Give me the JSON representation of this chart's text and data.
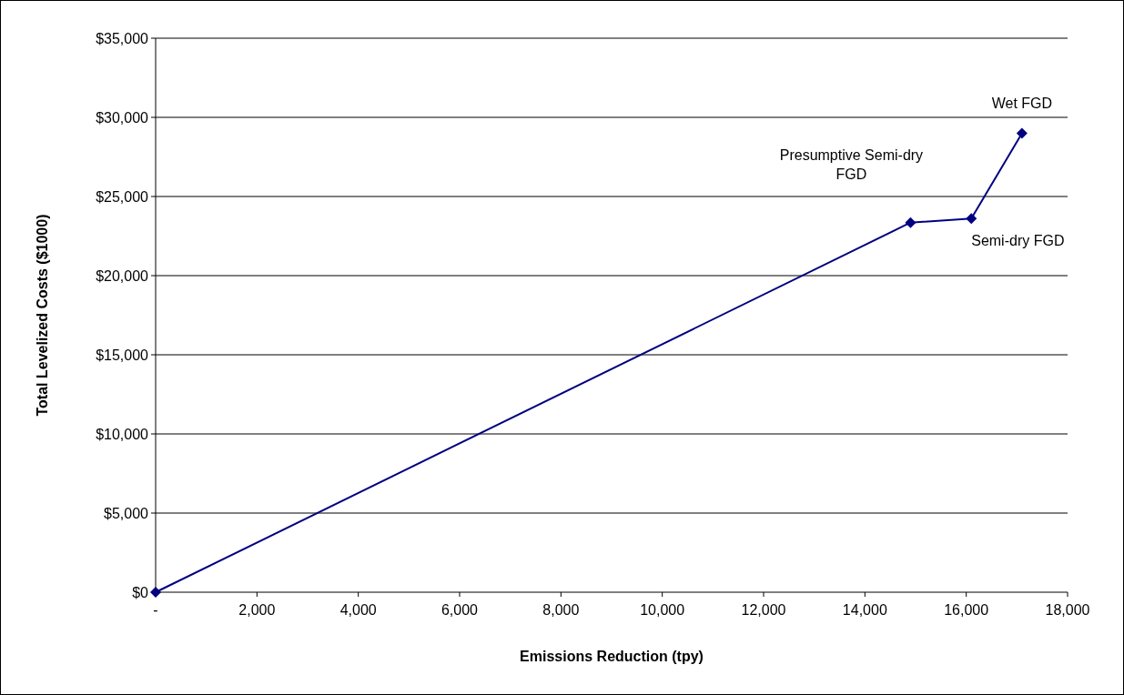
{
  "chart_data": {
    "type": "line",
    "xlabel": "Emissions Reduction (tpy)",
    "ylabel": "Total Levelized Costs ($1000)",
    "x": [
      0,
      14900,
      16100,
      17100
    ],
    "series": [
      {
        "color": "#000080",
        "values": [
          0,
          23350,
          23600,
          29000
        ]
      }
    ],
    "xlim": [
      0,
      18000
    ],
    "xticks": [
      {
        "value": 0,
        "label": "-"
      },
      {
        "value": 2000,
        "label": "2,000"
      },
      {
        "value": 4000,
        "label": "4,000"
      },
      {
        "value": 6000,
        "label": "6,000"
      },
      {
        "value": 8000,
        "label": "8,000"
      },
      {
        "value": 10000,
        "label": "10,000"
      },
      {
        "value": 12000,
        "label": "12,000"
      },
      {
        "value": 14000,
        "label": "14,000"
      },
      {
        "value": 16000,
        "label": "16,000"
      },
      {
        "value": 18000,
        "label": "18,000"
      }
    ],
    "ylim": [
      0,
      35000
    ],
    "yticks": [
      {
        "value": 0,
        "label": "$0"
      },
      {
        "value": 5000,
        "label": "$5,000"
      },
      {
        "value": 10000,
        "label": "$10,000"
      },
      {
        "value": 15000,
        "label": "$15,000"
      },
      {
        "value": 20000,
        "label": "$20,000"
      },
      {
        "value": 25000,
        "label": "$25,000"
      },
      {
        "value": 30000,
        "label": "$30,000"
      },
      {
        "value": 35000,
        "label": "$35,000"
      }
    ],
    "grid": "y",
    "marker": "diamond",
    "annotations": [
      {
        "text": "Presumptive Semi-dry\nFGD",
        "x": 14900,
        "y": 23350
      },
      {
        "text": "Semi-dry FGD",
        "x": 16100,
        "y": 23600
      },
      {
        "text": "Wet FGD",
        "x": 17100,
        "y": 29000
      }
    ]
  }
}
